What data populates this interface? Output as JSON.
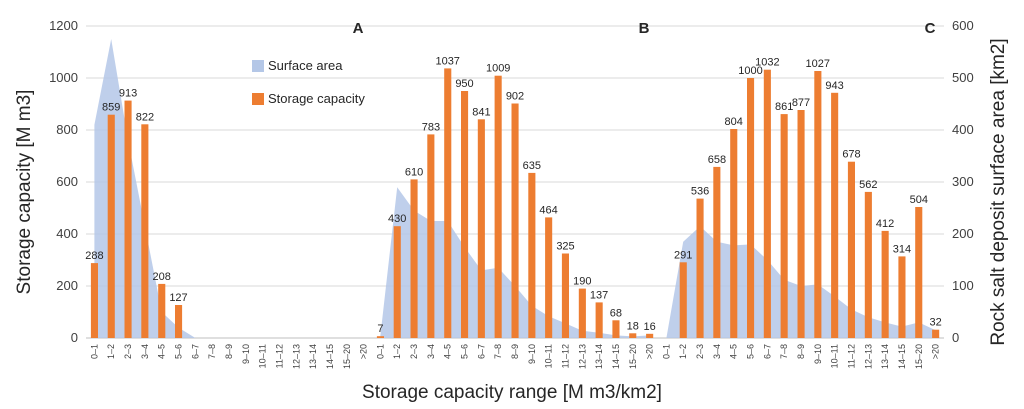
{
  "chart_data": {
    "type": "bar+area",
    "xlabel": "Storage capacity range [M m3/km2]",
    "ylabel": "Storage capacity [M m3]",
    "ylabel_right": "Rock salt deposit surface area [km2]",
    "ylim": [
      0,
      1200
    ],
    "ylim_right": [
      0,
      600
    ],
    "yticks": [
      "0",
      "200",
      "400",
      "600",
      "800",
      "1000",
      "1200"
    ],
    "yticks_right": [
      "0",
      "100",
      "200",
      "300",
      "400",
      "500",
      "600"
    ],
    "legend": {
      "area": "Surface area",
      "bar": "Storage capacity"
    },
    "colors": {
      "bar": "#ED7D31",
      "area": "#B4C7E7",
      "grid": "#D9D9D9"
    },
    "panels": [
      {
        "name": "A",
        "categories": [
          "0–1",
          "1–2",
          "2–3",
          "3–4",
          "4–5",
          "5–6",
          "6–7",
          "7–8",
          "8–9",
          "9–10",
          "10–11",
          "11–12",
          "12–13",
          "13–14",
          "14–15",
          "15–20",
          ">20"
        ],
        "storage_capacity": [
          288,
          859,
          913,
          822,
          208,
          127,
          null,
          null,
          null,
          null,
          null,
          null,
          null,
          null,
          null,
          null,
          null
        ],
        "surface_area": [
          410,
          575,
          380,
          215,
          50,
          20,
          0,
          0,
          0,
          0,
          0,
          0,
          0,
          0,
          0,
          0,
          0
        ]
      },
      {
        "name": "B",
        "categories": [
          "0–1",
          "1–2",
          "2–3",
          "3–4",
          "4–5",
          "5–6",
          "6–7",
          "7–8",
          "8–9",
          "9–10",
          "10–11",
          "11–12",
          "12–13",
          "13–14",
          "14–15",
          "15–20",
          ">20"
        ],
        "storage_capacity": [
          7,
          430,
          610,
          783,
          1037,
          950,
          841,
          1009,
          902,
          635,
          464,
          325,
          190,
          137,
          68,
          18,
          16
        ],
        "surface_area": [
          5,
          290,
          245,
          225,
          225,
          175,
          130,
          135,
          100,
          62,
          42,
          28,
          14,
          10,
          5,
          3,
          5
        ]
      },
      {
        "name": "C",
        "categories": [
          "0–1",
          "1–2",
          "2–3",
          "3–4",
          "4–5",
          "5–6",
          "6–7",
          "7–8",
          "8–9",
          "9–10",
          "10–11",
          "11–12",
          "12–13",
          "13–14",
          "14–15",
          "15–20",
          ">20"
        ],
        "storage_capacity": [
          null,
          291,
          536,
          658,
          804,
          1000,
          1032,
          861,
          877,
          1027,
          943,
          678,
          562,
          412,
          314,
          504,
          32
        ],
        "surface_area": [
          0,
          185,
          215,
          185,
          178,
          180,
          150,
          112,
          100,
          103,
          80,
          55,
          40,
          30,
          22,
          30,
          15
        ]
      }
    ]
  }
}
